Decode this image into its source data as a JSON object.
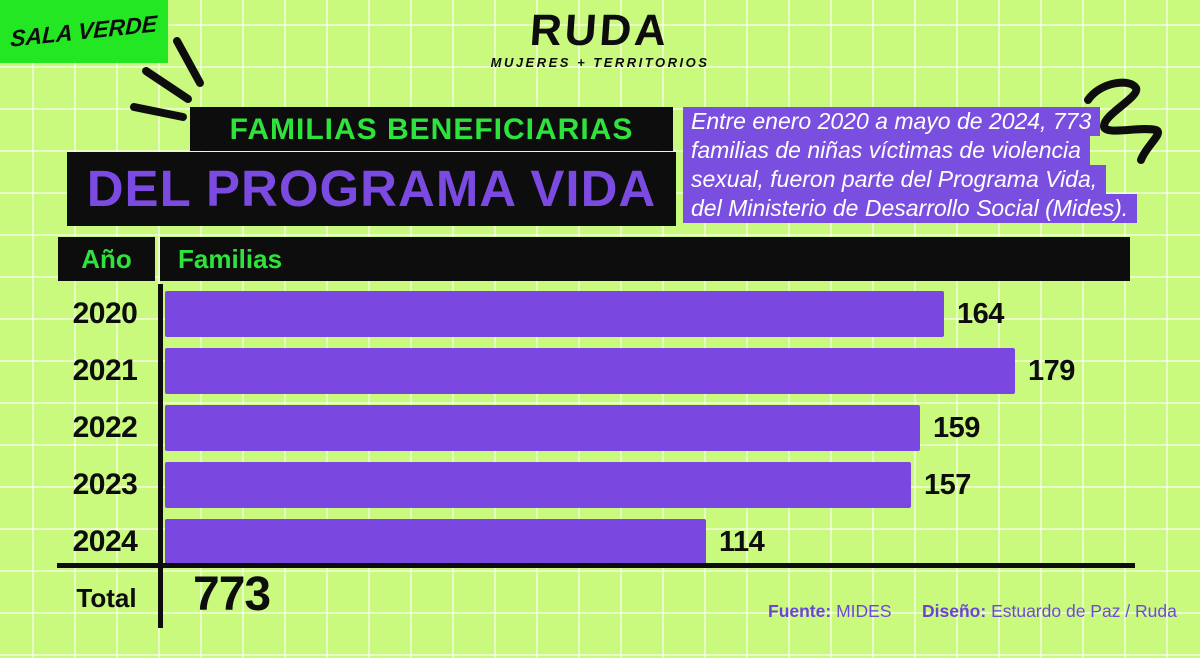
{
  "brand": {
    "sala_verde": "SALA VERDE",
    "ruda": "RUDA",
    "ruda_tagline": "MUJERES + TERRITORIOS"
  },
  "title": {
    "line1": "FAMILIAS BENEFICIARIAS",
    "line2": "DEL PROGRAMA VIDA"
  },
  "intro": {
    "line1": "Entre enero 2020 a mayo de 2024, 773",
    "line2": "familias de niñas víctimas de violencia",
    "line3": "sexual, fueron parte del Programa Vida,",
    "line4": "del Ministerio de Desarrollo Social (Mides)."
  },
  "chart_data": {
    "type": "bar",
    "orientation": "horizontal",
    "title": "Familias beneficiarias del Programa Vida",
    "col_year_header": "Año",
    "col_value_header": "Familias",
    "categories": [
      "2020",
      "2021",
      "2022",
      "2023",
      "2024"
    ],
    "values": [
      164,
      179,
      159,
      157,
      114
    ],
    "total_label": "Total",
    "total_value": "773",
    "xlim": [
      0,
      204
    ],
    "grid": false,
    "bar_color": "#7a48e0"
  },
  "footer": {
    "source_label": "Fuente:",
    "source_value": "MIDES",
    "design_label": "Diseño:",
    "design_value": "Estuardo de Paz / Ruda"
  },
  "colors": {
    "background_green": "#c9fa7e",
    "grid_line": "#e8ffc4",
    "accent_green": "#2ee43c",
    "logo_box_green": "#23e723",
    "bar_purple": "#7a48e0",
    "title_purple": "#7b4be1",
    "intro_bg_purple": "#7a4fe0",
    "credit_purple": "#6f49d6",
    "black": "#0d0d0d",
    "white": "#ffffff"
  }
}
